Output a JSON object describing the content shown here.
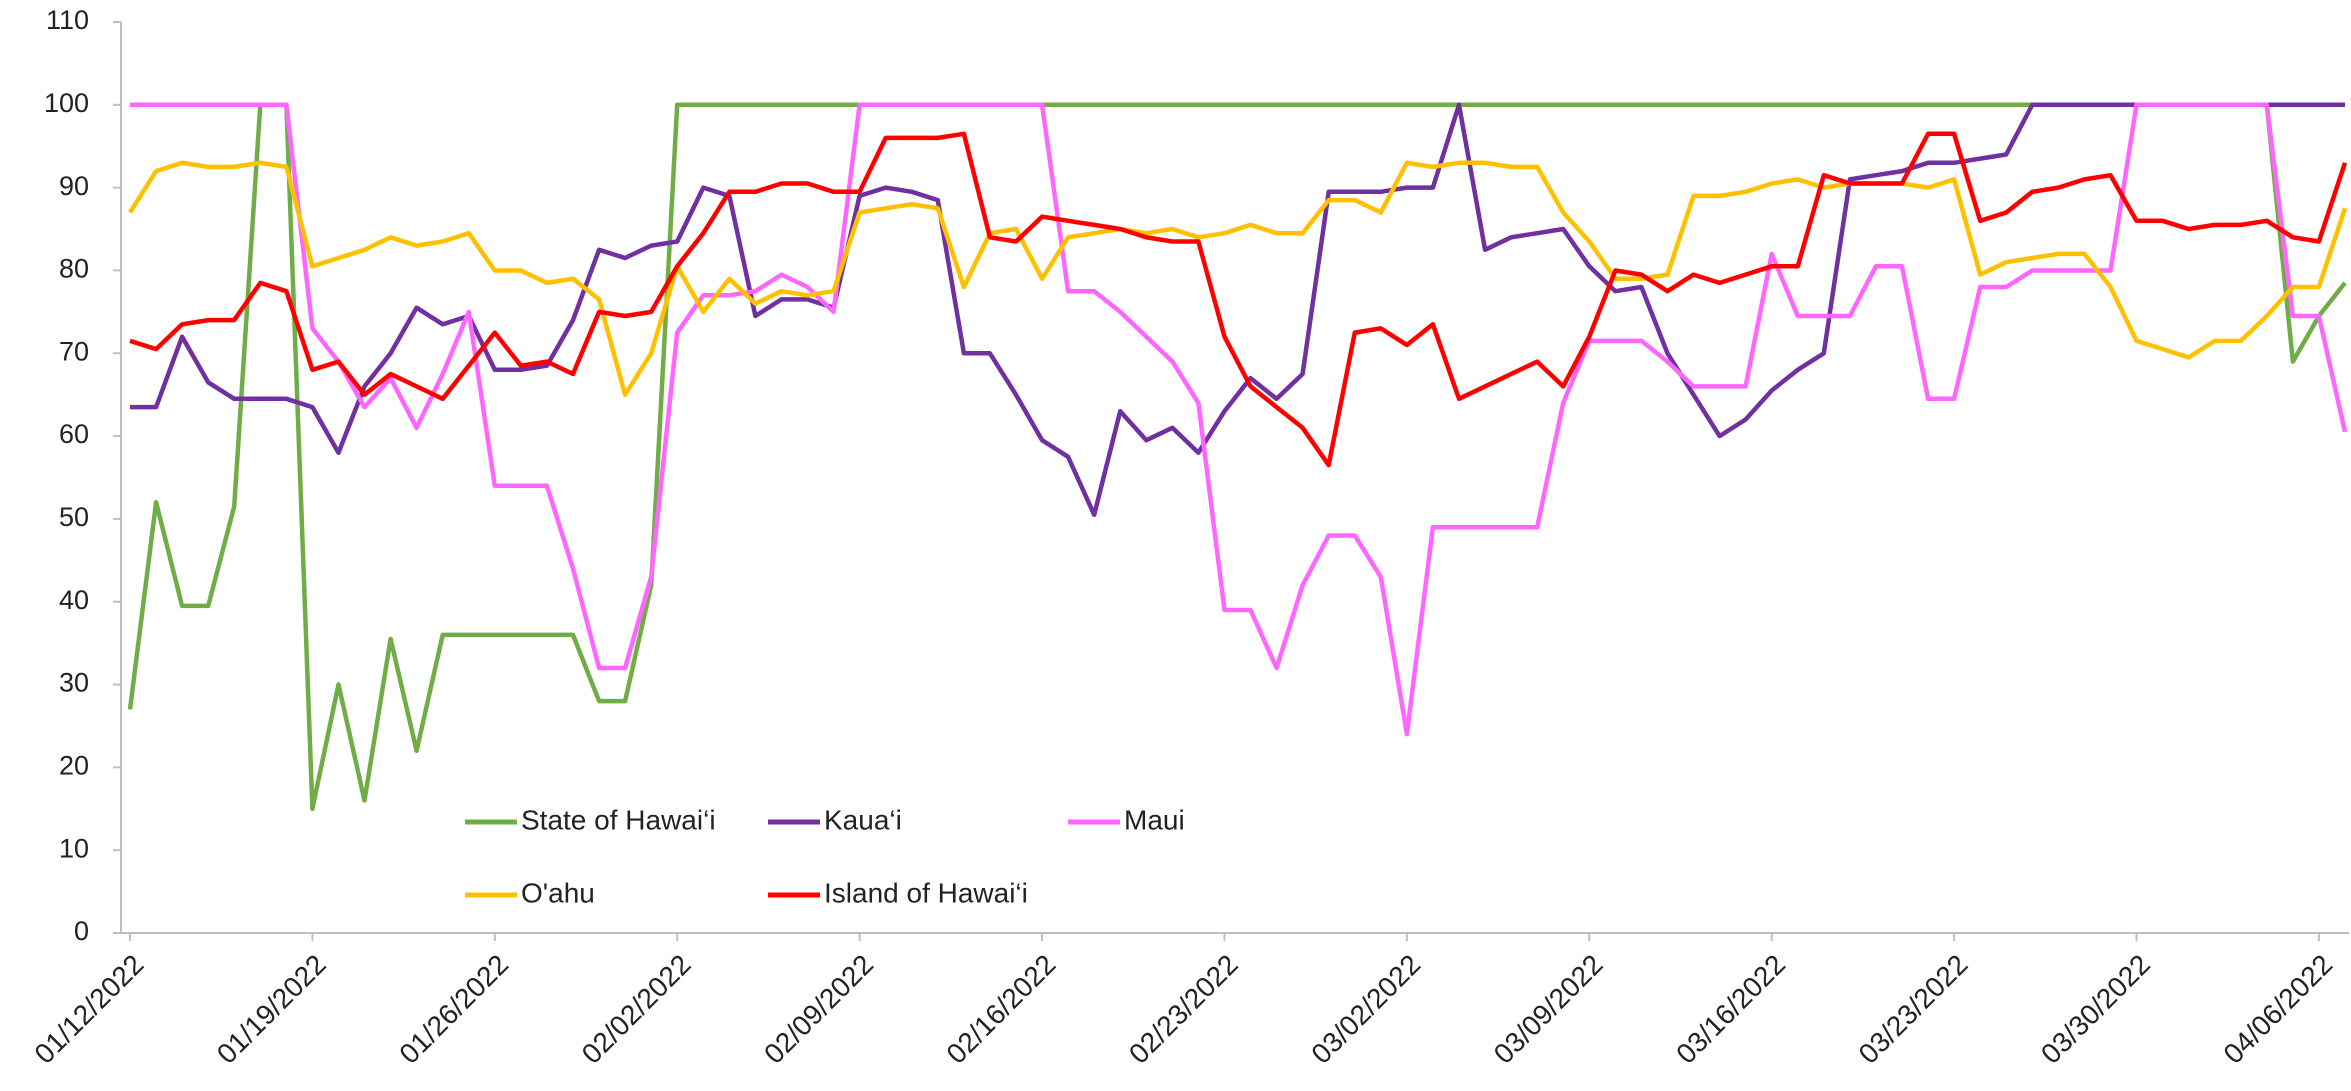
{
  "chart_data": {
    "type": "line",
    "x": [
      "01/12/2022",
      "01/13/2022",
      "01/14/2022",
      "01/15/2022",
      "01/16/2022",
      "01/17/2022",
      "01/18/2022",
      "01/19/2022",
      "01/20/2022",
      "01/21/2022",
      "01/22/2022",
      "01/23/2022",
      "01/24/2022",
      "01/25/2022",
      "01/26/2022",
      "01/27/2022",
      "01/28/2022",
      "01/29/2022",
      "01/30/2022",
      "01/31/2022",
      "02/01/2022",
      "02/02/2022",
      "02/03/2022",
      "02/04/2022",
      "02/05/2022",
      "02/06/2022",
      "02/07/2022",
      "02/08/2022",
      "02/09/2022",
      "02/10/2022",
      "02/11/2022",
      "02/12/2022",
      "02/13/2022",
      "02/14/2022",
      "02/15/2022",
      "02/16/2022",
      "02/17/2022",
      "02/18/2022",
      "02/19/2022",
      "02/20/2022",
      "02/21/2022",
      "02/22/2022",
      "02/23/2022",
      "02/24/2022",
      "02/25/2022",
      "02/26/2022",
      "02/27/2022",
      "02/28/2022",
      "03/01/2022",
      "03/02/2022",
      "03/03/2022",
      "03/04/2022",
      "03/05/2022",
      "03/06/2022",
      "03/07/2022",
      "03/08/2022",
      "03/09/2022",
      "03/10/2022",
      "03/11/2022",
      "03/12/2022",
      "03/13/2022",
      "03/14/2022",
      "03/15/2022",
      "03/16/2022",
      "03/17/2022",
      "03/18/2022",
      "03/19/2022",
      "03/20/2022",
      "03/21/2022",
      "03/22/2022",
      "03/23/2022",
      "03/24/2022",
      "03/25/2022",
      "03/26/2022",
      "03/27/2022",
      "03/28/2022",
      "03/29/2022",
      "03/30/2022",
      "03/31/2022",
      "04/01/2022",
      "04/02/2022",
      "04/03/2022",
      "04/04/2022",
      "04/05/2022",
      "04/06/2022",
      "04/07/2022"
    ],
    "xticks": [
      "01/12/2022",
      "01/19/2022",
      "01/26/2022",
      "02/02/2022",
      "02/09/2022",
      "02/16/2022",
      "02/23/2022",
      "03/02/2022",
      "03/09/2022",
      "03/16/2022",
      "03/23/2022",
      "03/30/2022",
      "04/06/2022"
    ],
    "ylim": [
      0,
      110
    ],
    "yticks": [
      0,
      10,
      20,
      30,
      40,
      50,
      60,
      70,
      80,
      90,
      100,
      110
    ],
    "grid": false,
    "series": [
      {
        "name": "State of Hawai‘i",
        "color": "#70ad47",
        "values": [
          27,
          52,
          39.5,
          39.5,
          51.5,
          100,
          100,
          15,
          30,
          16,
          35.5,
          22,
          36,
          36,
          36,
          36,
          36,
          36,
          28,
          28,
          42,
          100,
          100,
          100,
          100,
          100,
          100,
          100,
          100,
          100,
          100,
          100,
          100,
          100,
          100,
          100,
          100,
          100,
          100,
          100,
          100,
          100,
          100,
          100,
          100,
          100,
          100,
          100,
          100,
          100,
          100,
          100,
          100,
          100,
          100,
          100,
          100,
          100,
          100,
          100,
          100,
          100,
          100,
          100,
          100,
          100,
          100,
          100,
          100,
          100,
          100,
          100,
          100,
          100,
          100,
          100,
          100,
          100,
          100,
          100,
          100,
          100,
          100,
          69,
          74.5,
          78.5
        ]
      },
      {
        "name": "Kaua‘i",
        "color": "#7030a0",
        "values": [
          63.5,
          63.5,
          72,
          66.5,
          64.5,
          64.5,
          64.5,
          63.5,
          58,
          66,
          70,
          75.5,
          73.5,
          74.5,
          68,
          68,
          68.5,
          74,
          82.5,
          81.5,
          83,
          83.5,
          90,
          89,
          74.5,
          76.5,
          76.5,
          75.5,
          89,
          90,
          89.5,
          88.5,
          70,
          70,
          65,
          59.5,
          57.5,
          50.5,
          63,
          59.5,
          61,
          58,
          63,
          67,
          64.5,
          67.5,
          89.5,
          89.5,
          89.5,
          90,
          90,
          100,
          82.5,
          84,
          84.5,
          85,
          80.5,
          77.5,
          78,
          70,
          65,
          60,
          62,
          65.5,
          68,
          70,
          91,
          91.5,
          92,
          93,
          93,
          93.5,
          94,
          100,
          100,
          100,
          100,
          100,
          100,
          100,
          100,
          100,
          100,
          100,
          100,
          100
        ]
      },
      {
        "name": "Maui",
        "color": "#ff66ff",
        "values": [
          100,
          100,
          100,
          100,
          100,
          100,
          100,
          73,
          69,
          63.5,
          67,
          61,
          67.5,
          75,
          54,
          54,
          54,
          44,
          32,
          32,
          43,
          72.5,
          77,
          77,
          77.5,
          79.5,
          78,
          75,
          100,
          100,
          100,
          100,
          100,
          100,
          100,
          100,
          77.5,
          77.5,
          75,
          72,
          69,
          64,
          39,
          39,
          32,
          42,
          48,
          48,
          43,
          24,
          49,
          49,
          49,
          49,
          49,
          64,
          71.5,
          71.5,
          71.5,
          69,
          66,
          66,
          66,
          82,
          74.5,
          74.5,
          74.5,
          80.5,
          80.5,
          64.5,
          64.5,
          78,
          78,
          80,
          80,
          80,
          80,
          100,
          100,
          100,
          100,
          100,
          100,
          74.5,
          74.5,
          60.5
        ]
      },
      {
        "name": "O'ahu",
        "color": "#ffc000",
        "values": [
          87,
          92,
          93,
          92.5,
          92.5,
          93,
          92.5,
          80.5,
          81.5,
          82.5,
          84,
          83,
          83.5,
          84.5,
          80,
          80,
          78.5,
          79,
          76.5,
          65,
          70,
          80.5,
          75,
          79,
          76,
          77.5,
          77,
          77.5,
          87,
          87.5,
          88,
          87.5,
          78,
          84.5,
          85,
          79,
          84,
          84.5,
          85,
          84.5,
          85,
          84,
          84.5,
          85.5,
          84.5,
          84.5,
          88.5,
          88.5,
          87,
          93,
          92.5,
          93,
          93,
          92.5,
          92.5,
          87,
          83.5,
          79,
          79,
          79.5,
          89,
          89,
          89.5,
          90.5,
          91,
          90,
          90.5,
          90.5,
          90.5,
          90,
          91,
          79.5,
          81,
          81.5,
          82,
          82,
          78,
          71.5,
          70.5,
          69.5,
          71.5,
          71.5,
          74.5,
          78,
          78,
          87.5
        ]
      },
      {
        "name": "Island of Hawai‘i",
        "color": "#ff0000",
        "values": [
          71.5,
          70.5,
          73.5,
          74,
          74,
          78.5,
          77.5,
          68,
          69,
          65,
          67.5,
          66,
          64.5,
          68.5,
          72.5,
          68.5,
          69,
          67.5,
          75,
          74.5,
          75,
          80.5,
          84.5,
          89.5,
          89.5,
          90.5,
          90.5,
          89.5,
          89.5,
          96,
          96,
          96,
          96.5,
          84,
          83.5,
          86.5,
          86,
          85.5,
          85,
          84,
          83.5,
          83.5,
          72,
          66,
          63.5,
          61,
          56.5,
          72.5,
          73,
          71,
          73.5,
          64.5,
          66,
          67.5,
          69,
          66,
          72,
          80,
          79.5,
          77.5,
          79.5,
          78.5,
          79.5,
          80.5,
          80.5,
          91.5,
          90.5,
          90.5,
          90.5,
          96.5,
          96.5,
          86,
          87,
          89.5,
          90,
          91,
          91.5,
          86,
          86,
          85,
          85.5,
          85.5,
          86,
          84,
          83.5,
          93
        ]
      }
    ]
  }
}
